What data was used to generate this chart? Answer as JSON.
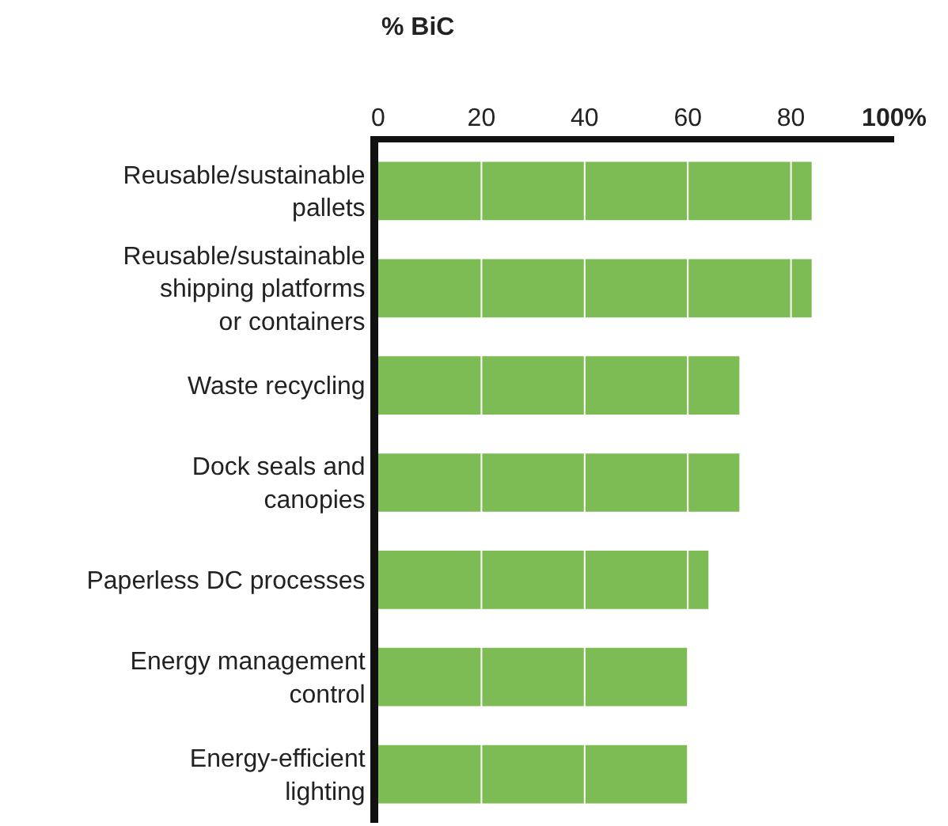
{
  "chart_data": {
    "type": "bar",
    "orientation": "horizontal",
    "xlabel": "% BiC",
    "categories": [
      "Reusable/sustainable\npallets",
      "Reusable/sustainable\nshipping platforms\nor containers",
      "Waste recycling",
      "Dock seals and\ncanopies",
      "Paperless DC processes",
      "Energy management\ncontrol",
      "Energy-efficient\nlighting"
    ],
    "values": [
      84,
      84,
      70,
      70,
      64,
      60,
      60
    ],
    "color": "#7dbb55",
    "xlim": [
      0,
      100
    ],
    "xticks": [
      0,
      20,
      40,
      60,
      80,
      {
        "value": 100,
        "label": "100%"
      }
    ],
    "grid": "x"
  }
}
